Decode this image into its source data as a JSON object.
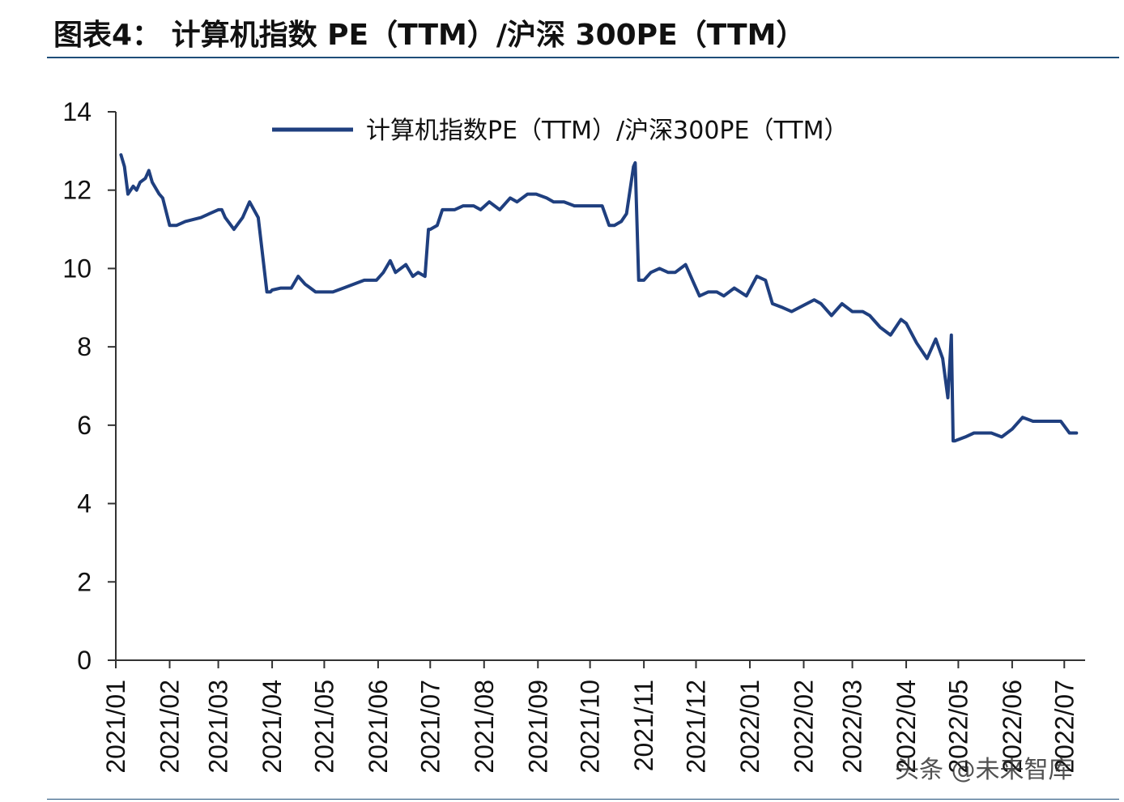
{
  "header": {
    "title": "图表4：  计算机指数 PE（TTM）/沪深 300PE（TTM）"
  },
  "watermark": "头条 @未来智库",
  "chart_data": {
    "type": "line",
    "title": "图表4：  计算机指数 PE（TTM）/沪深 300PE（TTM）",
    "xlabel": "",
    "ylabel": "",
    "ylim": [
      0,
      14
    ],
    "yticks": [
      0,
      2,
      4,
      6,
      8,
      10,
      12,
      14
    ],
    "xticks": [
      "2021/01",
      "2021/02",
      "2021/03",
      "2021/04",
      "2021/05",
      "2021/06",
      "2021/07",
      "2021/08",
      "2021/09",
      "2021/10",
      "2021/11",
      "2021/12",
      "2022/01",
      "2022/02",
      "2022/03",
      "2022/04",
      "2022/05",
      "2022/06",
      "2022/07"
    ],
    "legend": "top",
    "grid": false,
    "line_color": "#1f3f7f",
    "series": [
      {
        "name": "计算机指数PE（TTM）/沪深300PE（TTM）",
        "x": [
          "2021-01-04",
          "2021-01-06",
          "2021-01-08",
          "2021-01-11",
          "2021-01-13",
          "2021-01-15",
          "2021-01-18",
          "2021-01-20",
          "2021-01-22",
          "2021-01-26",
          "2021-01-28",
          "2021-02-01",
          "2021-02-05",
          "2021-02-10",
          "2021-02-19",
          "2021-02-24",
          "2021-03-01",
          "2021-03-03",
          "2021-03-05",
          "2021-03-10",
          "2021-03-15",
          "2021-03-19",
          "2021-03-24",
          "2021-03-29",
          "2021-03-31",
          "2021-04-01",
          "2021-04-06",
          "2021-04-12",
          "2021-04-16",
          "2021-04-20",
          "2021-04-26",
          "2021-04-30",
          "2021-05-06",
          "2021-05-12",
          "2021-05-18",
          "2021-05-24",
          "2021-05-31",
          "2021-06-04",
          "2021-06-08",
          "2021-06-11",
          "2021-06-17",
          "2021-06-21",
          "2021-06-24",
          "2021-06-28",
          "2021-06-30",
          "2021-07-01",
          "2021-07-05",
          "2021-07-08",
          "2021-07-12",
          "2021-07-15",
          "2021-07-20",
          "2021-07-26",
          "2021-07-30",
          "2021-08-04",
          "2021-08-10",
          "2021-08-16",
          "2021-08-20",
          "2021-08-26",
          "2021-08-31",
          "2021-09-06",
          "2021-09-10",
          "2021-09-16",
          "2021-09-22",
          "2021-09-28",
          "2021-10-08",
          "2021-10-12",
          "2021-10-15",
          "2021-10-19",
          "2021-10-22",
          "2021-10-26",
          "2021-10-27",
          "2021-10-29",
          "2021-11-01",
          "2021-11-05",
          "2021-11-10",
          "2021-11-15",
          "2021-11-19",
          "2021-11-25",
          "2021-11-30",
          "2021-12-03",
          "2021-12-08",
          "2021-12-13",
          "2021-12-17",
          "2021-12-23",
          "2021-12-30",
          "2022-01-05",
          "2022-01-10",
          "2022-01-14",
          "2022-01-20",
          "2022-01-25",
          "2022-02-07",
          "2022-02-11",
          "2022-02-17",
          "2022-02-23",
          "2022-03-01",
          "2022-03-07",
          "2022-03-11",
          "2022-03-17",
          "2022-03-23",
          "2022-03-29",
          "2022-04-01",
          "2022-04-07",
          "2022-04-13",
          "2022-04-18",
          "2022-04-22",
          "2022-04-25",
          "2022-04-27",
          "2022-04-28",
          "2022-04-29",
          "2022-05-05",
          "2022-05-10",
          "2022-05-16",
          "2022-05-20",
          "2022-05-26",
          "2022-06-01",
          "2022-06-07",
          "2022-06-13",
          "2022-06-17",
          "2022-06-23",
          "2022-06-29",
          "2022-07-04",
          "2022-07-08"
        ],
        "values": [
          12.9,
          12.6,
          11.9,
          12.1,
          12.0,
          12.2,
          12.3,
          12.5,
          12.2,
          11.9,
          11.8,
          11.1,
          11.1,
          11.2,
          11.3,
          11.4,
          11.5,
          11.5,
          11.3,
          11.0,
          11.3,
          11.7,
          11.3,
          9.4,
          9.4,
          9.45,
          9.5,
          9.5,
          9.8,
          9.6,
          9.4,
          9.4,
          9.4,
          9.5,
          9.6,
          9.7,
          9.7,
          9.9,
          10.2,
          9.9,
          10.1,
          9.8,
          9.9,
          9.8,
          11.0,
          11.0,
          11.1,
          11.5,
          11.5,
          11.5,
          11.6,
          11.6,
          11.5,
          11.7,
          11.5,
          11.8,
          11.7,
          11.9,
          11.9,
          11.8,
          11.7,
          11.7,
          11.6,
          11.6,
          11.6,
          11.1,
          11.1,
          11.2,
          11.4,
          12.6,
          12.7,
          9.7,
          9.7,
          9.9,
          10.0,
          9.9,
          9.9,
          10.1,
          9.6,
          9.3,
          9.4,
          9.4,
          9.3,
          9.5,
          9.3,
          9.8,
          9.7,
          9.1,
          9.0,
          8.9,
          9.2,
          9.1,
          8.8,
          9.1,
          8.9,
          8.9,
          8.8,
          8.5,
          8.3,
          8.7,
          8.6,
          8.1,
          7.7,
          8.2,
          7.7,
          6.7,
          8.3,
          5.6,
          5.6,
          5.7,
          5.8,
          5.8,
          5.8,
          5.7,
          5.9,
          6.2,
          6.1,
          6.1,
          6.1,
          6.1,
          5.8,
          5.8
        ]
      }
    ]
  }
}
